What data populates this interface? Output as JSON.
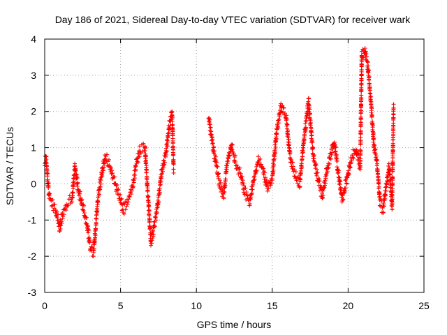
{
  "chart_data": {
    "type": "scatter",
    "title": "Day 186 of 2021, Sidereal Day-to-day VTEC variation (SDTVAR) for receiver wark",
    "xlabel": "GPS time / hours",
    "ylabel": "SDTVAR / TECUs",
    "xlim": [
      0,
      25
    ],
    "ylim": [
      -3,
      4
    ],
    "xticks": [
      0,
      5,
      10,
      15,
      20,
      25
    ],
    "yticks": [
      -3,
      -2,
      -1,
      0,
      1,
      2,
      3,
      4
    ],
    "grid": true,
    "marker": "+",
    "colors": {
      "series": "#ff0000",
      "grid": "#a0a0a0",
      "axes": "#000000"
    },
    "series": [
      {
        "name": "SDTVAR",
        "x": [
          0.0,
          0.1,
          0.2,
          0.3,
          0.5,
          0.7,
          0.9,
          1.0,
          1.2,
          1.5,
          1.8,
          2.0,
          2.2,
          2.5,
          2.8,
          3.0,
          3.2,
          3.3,
          3.5,
          3.8,
          4.0,
          4.3,
          4.6,
          4.9,
          5.2,
          5.5,
          5.8,
          6.0,
          6.3,
          6.6,
          7.0,
          7.1,
          7.4,
          7.7,
          8.0,
          8.2,
          8.4,
          8.5,
          10.8,
          11.0,
          11.2,
          11.5,
          11.8,
          12.0,
          12.3,
          12.6,
          12.9,
          13.2,
          13.5,
          13.8,
          14.1,
          14.4,
          14.7,
          15.0,
          15.3,
          15.6,
          15.9,
          16.2,
          16.5,
          16.8,
          17.1,
          17.4,
          17.7,
          18.0,
          18.3,
          18.6,
          18.9,
          19.1,
          19.3,
          19.6,
          19.9,
          20.2,
          20.5,
          20.8,
          20.9,
          21.1,
          21.3,
          21.5,
          21.7,
          21.9,
          22.1,
          22.3,
          22.5,
          22.7,
          22.9,
          23.0
        ],
        "y": [
          0.5,
          0.6,
          0.0,
          -0.4,
          -0.6,
          -0.8,
          -1.1,
          -1.3,
          -0.9,
          -0.6,
          -0.5,
          0.4,
          -0.2,
          -0.7,
          -1.2,
          -1.8,
          -2.0,
          -1.6,
          -0.5,
          0.3,
          0.7,
          0.4,
          0.0,
          -0.4,
          -0.8,
          -0.5,
          -0.1,
          0.4,
          0.9,
          1.0,
          -1.7,
          -1.5,
          -0.8,
          0.2,
          0.8,
          1.5,
          1.9,
          0.3,
          1.8,
          1.2,
          0.7,
          0.0,
          -0.4,
          0.4,
          1.0,
          0.5,
          0.2,
          -0.3,
          -0.6,
          0.1,
          0.6,
          0.3,
          -0.2,
          0.1,
          1.4,
          2.1,
          1.8,
          0.6,
          0.2,
          -0.1,
          1.2,
          2.2,
          0.7,
          0.1,
          -0.4,
          0.3,
          0.8,
          1.1,
          0.4,
          -0.5,
          0.0,
          0.6,
          0.9,
          0.4,
          3.5,
          3.6,
          3.2,
          2.2,
          1.0,
          0.5,
          -0.6,
          -0.8,
          -0.2,
          0.4,
          -0.7,
          2.1
        ]
      }
    ]
  }
}
